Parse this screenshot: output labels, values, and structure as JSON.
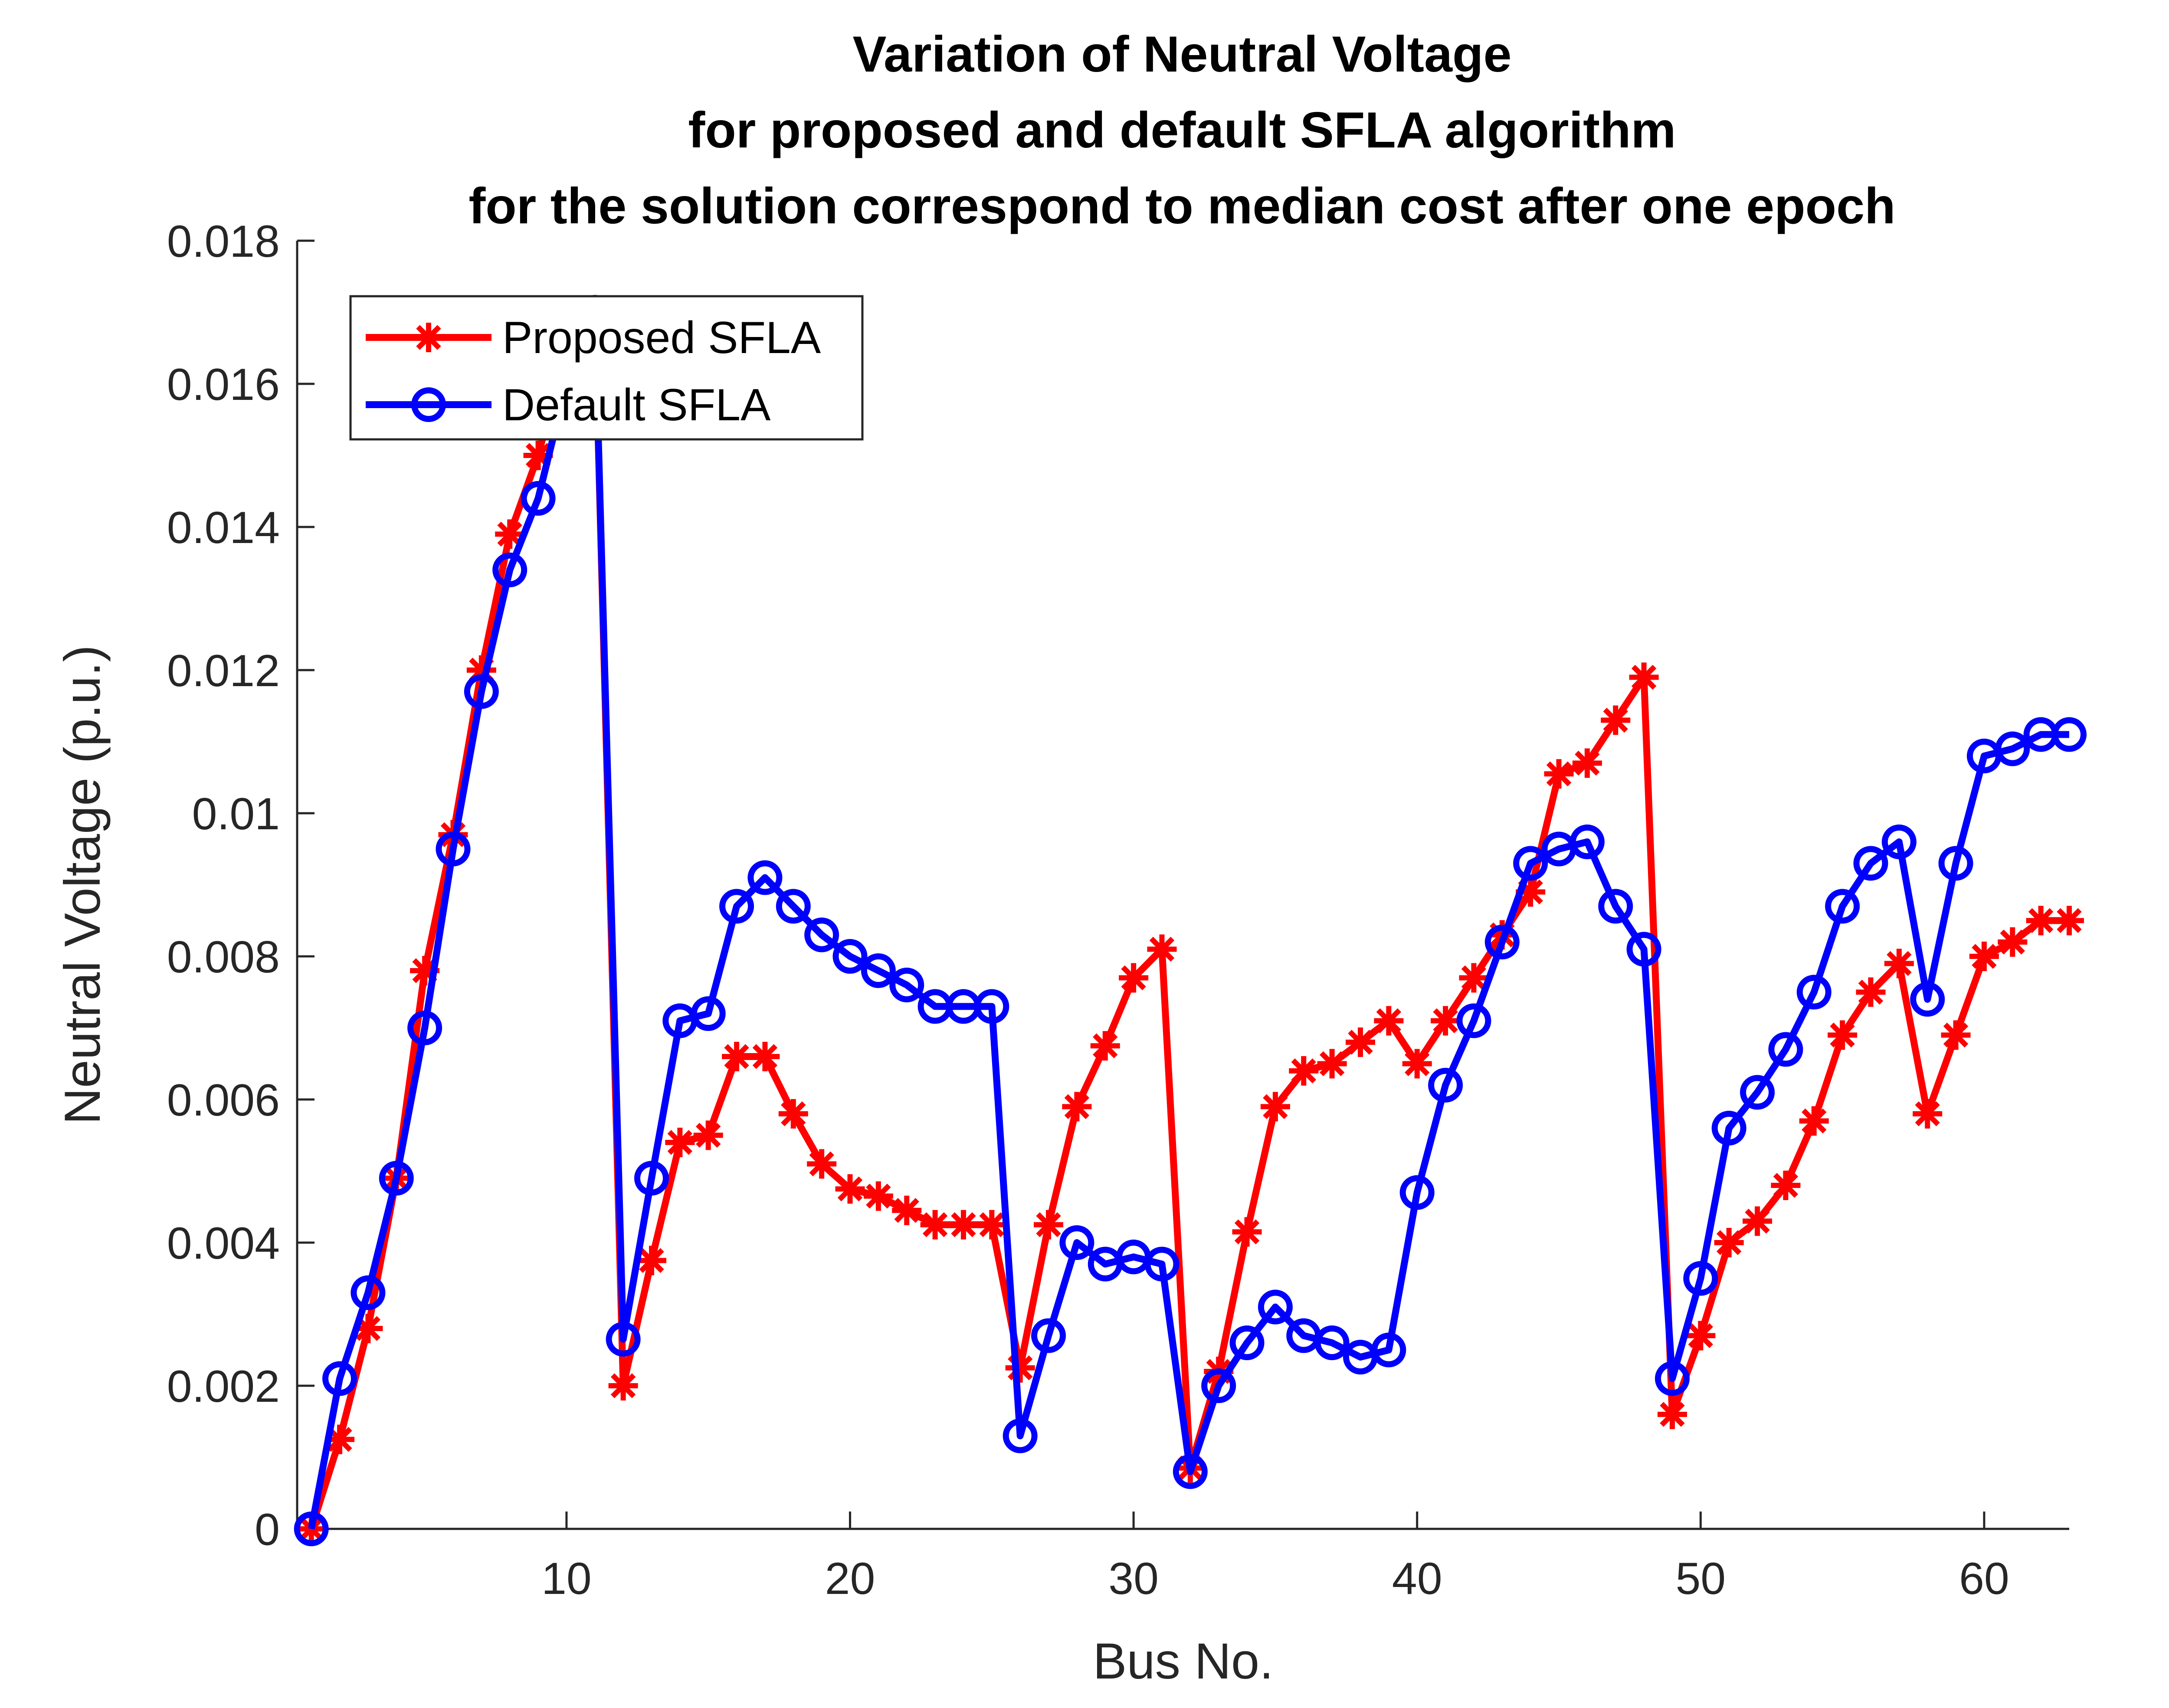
{
  "chart_data": {
    "type": "line",
    "title": [
      "Variation of Neutral Voltage",
      "for proposed and default SFLA algorithm",
      "for the solution correspond to median cost after one epoch"
    ],
    "xlabel": "Bus No.",
    "ylabel": "Neutral Voltage (p.u.)",
    "xlim": [
      0.5,
      63
    ],
    "ylim": [
      0,
      0.018
    ],
    "xticks": [
      10,
      20,
      30,
      40,
      50,
      60
    ],
    "xtick_labels": [
      "10",
      "20",
      "30",
      "40",
      "50",
      "60"
    ],
    "yticks": [
      0,
      0.002,
      0.004,
      0.006,
      0.008,
      0.01,
      0.012,
      0.014,
      0.016,
      0.018
    ],
    "ytick_labels": [
      "0",
      "0.002",
      "0.004",
      "0.006",
      "0.008",
      "0.01",
      "0.012",
      "0.014",
      "0.016",
      "0.018"
    ],
    "grid": false,
    "legend_position": "top-left",
    "x": [
      1,
      2,
      3,
      4,
      5,
      6,
      7,
      8,
      9,
      10,
      11,
      12,
      13,
      14,
      15,
      16,
      17,
      18,
      19,
      20,
      21,
      22,
      23,
      24,
      25,
      26,
      27,
      28,
      29,
      30,
      31,
      32,
      33,
      34,
      35,
      36,
      37,
      38,
      39,
      40,
      41,
      42,
      43,
      44,
      45,
      46,
      47,
      48,
      49,
      50,
      51,
      52,
      53,
      54,
      55,
      56,
      57,
      58,
      59,
      60,
      61,
      62,
      63
    ],
    "series": [
      {
        "name": "Proposed SFLA",
        "color": "#ff0000",
        "marker": "asterisk",
        "values": [
          0,
          0.00125,
          0.0028,
          0.0049,
          0.0078,
          0.0097,
          0.012,
          0.0139,
          0.015,
          0.0165,
          0.017,
          0.002,
          0.00375,
          0.0054,
          0.0055,
          0.0066,
          0.0066,
          0.0058,
          0.0051,
          0.00475,
          0.00465,
          0.00445,
          0.00425,
          0.00425,
          0.00425,
          0.00225,
          0.00425,
          0.0059,
          0.00675,
          0.0077,
          0.0081,
          0.00085,
          0.0022,
          0.00415,
          0.0059,
          0.0064,
          0.0065,
          0.0068,
          0.0071,
          0.0065,
          0.0071,
          0.0077,
          0.0083,
          0.0089,
          0.01055,
          0.0107,
          0.0113,
          0.0119,
          0.0016,
          0.0027,
          0.004,
          0.0043,
          0.0048,
          0.0057,
          0.0069,
          0.0075,
          0.0079,
          0.0058,
          0.0069,
          0.008,
          0.0082,
          0.0085,
          0.0085
        ]
      },
      {
        "name": "Default SFLA",
        "color": "#0000ff",
        "marker": "circle",
        "values": [
          0,
          0.0021,
          0.0033,
          0.0049,
          0.007,
          0.0095,
          0.0117,
          0.0134,
          0.0144,
          0.016,
          0.017,
          0.00265,
          0.0049,
          0.0071,
          0.0072,
          0.0087,
          0.0091,
          0.0087,
          0.0083,
          0.008,
          0.0078,
          0.0076,
          0.0073,
          0.0073,
          0.0073,
          0.0013,
          0.0027,
          0.004,
          0.0037,
          0.0038,
          0.0037,
          0.0008,
          0.002,
          0.0026,
          0.0031,
          0.0027,
          0.0026,
          0.0024,
          0.0025,
          0.0047,
          0.0062,
          0.0071,
          0.0082,
          0.0093,
          0.0095,
          0.0096,
          0.0087,
          0.0081,
          0.0021,
          0.0035,
          0.0056,
          0.0061,
          0.0067,
          0.0075,
          0.0087,
          0.0093,
          0.0096,
          0.0074,
          0.0093,
          0.0108,
          0.0109,
          0.0111,
          0.0111
        ]
      }
    ]
  }
}
